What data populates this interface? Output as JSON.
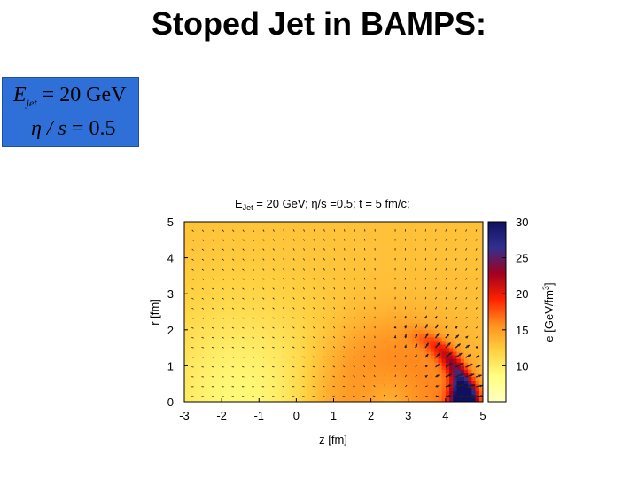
{
  "slide": {
    "title": "Stoped Jet in BAMPS:"
  },
  "params": {
    "e_symbol": "E",
    "e_sub": "jet",
    "e_eq": " = 20 GeV",
    "eta_symbol": "η / s",
    "eta_eq": " = 0.5"
  },
  "colors": {
    "param_box": "#2f6fd8",
    "colormap": [
      "#ffffc0",
      "#ffff80",
      "#ffd040",
      "#ff9020",
      "#ff2000",
      "#a00020",
      "#303090",
      "#101060"
    ]
  },
  "chart_data": {
    "type": "heatmap",
    "title": "E_Jet = 20 GeV; η/s =0.5; t = 5 fm/c;",
    "xlabel": "z [fm]",
    "ylabel": "r [fm]",
    "colorbar_label": "e [GeV/fm^3]",
    "xlim": [
      -3,
      5
    ],
    "ylim": [
      0,
      5
    ],
    "clim": [
      5,
      30
    ],
    "xticks": [
      -3,
      -2,
      -1,
      0,
      1,
      2,
      3,
      4,
      5
    ],
    "yticks": [
      0,
      1,
      2,
      3,
      4,
      5
    ],
    "cticks": [
      10,
      15,
      20,
      25,
      30
    ],
    "background_energy": 13,
    "shock_front": {
      "center_z": 2.5,
      "radius": 2.0,
      "width": 0.25,
      "peak": 12
    },
    "jet_spot": {
      "z": 4.5,
      "r": 0.3,
      "peak": 19
    },
    "arrows": "velocity field, radially outward from (z=2.5, r=0) near the shock front"
  }
}
